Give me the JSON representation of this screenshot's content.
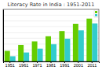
{
  "chart_data": {
    "type": "bar",
    "title": "Literacy Rate in India : 1951-2011",
    "categories": [
      "1951",
      "1961",
      "1971",
      "1981",
      "1991",
      "2001",
      "2011"
    ],
    "series": [
      {
        "color": "#66cc00",
        "values": [
          18.3,
          28.3,
          34.5,
          43.6,
          52.2,
          64.8,
          74.0
        ]
      },
      {
        "color": "#33cccc",
        "values": [
          8.9,
          15.4,
          22.0,
          29.8,
          39.3,
          53.7,
          65.5
        ]
      }
    ],
    "ylim": [
      0,
      90
    ],
    "yticks": [
      10,
      20,
      30,
      40,
      50,
      60,
      70,
      80
    ],
    "grid": true,
    "tick_labels": "x",
    "legend": "upper right"
  }
}
